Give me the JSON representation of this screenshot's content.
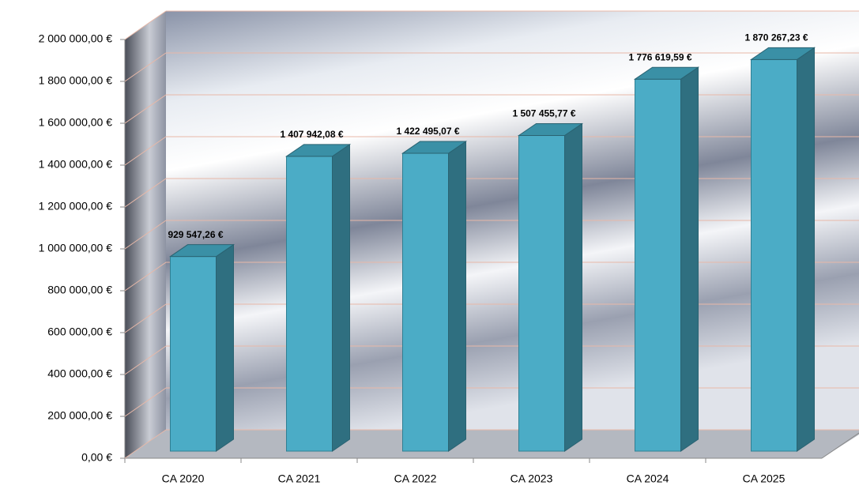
{
  "chart_data": {
    "type": "bar3d",
    "categories": [
      "CA 2020",
      "CA 2021",
      "CA 2022",
      "CA 2023",
      "CA 2024",
      "CA 2025"
    ],
    "values": [
      929547.26,
      1407942.08,
      1422495.07,
      1507455.77,
      1776619.59,
      1870267.23
    ],
    "value_labels": [
      "929 547,26 €",
      "1 407 942,08 €",
      "1 422 495,07 €",
      "1 507 455,77 €",
      "1 776 619,59 €",
      "1 870 267,23 €"
    ],
    "color": "#4bacc6",
    "ylim": [
      0,
      2000000
    ],
    "yticks": [
      {
        "value": 0,
        "label": "0,00 €"
      },
      {
        "value": 200000,
        "label": "200 000,00 €"
      },
      {
        "value": 400000,
        "label": "400 000,00 €"
      },
      {
        "value": 600000,
        "label": "600 000,00 €"
      },
      {
        "value": 800000,
        "label": "800 000,00 €"
      },
      {
        "value": 1000000,
        "label": "1 000 000,00 €"
      },
      {
        "value": 1200000,
        "label": "1 200 000,00 €"
      },
      {
        "value": 1400000,
        "label": "1 400 000,00 €"
      },
      {
        "value": 1600000,
        "label": "1 600 000,00 €"
      },
      {
        "value": 1800000,
        "label": "1 800 000,00 €"
      },
      {
        "value": 2000000,
        "label": "2 000 000,00 €"
      }
    ],
    "grid": true
  }
}
